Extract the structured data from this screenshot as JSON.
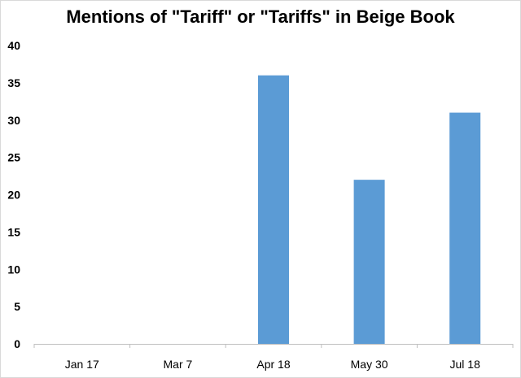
{
  "chart_data": {
    "type": "bar",
    "title": "Mentions of \"Tariff\" or \"Tariffs\" in Beige Book",
    "xlabel": "",
    "ylabel": "",
    "categories": [
      "Jan 17",
      "Mar 7",
      "Apr 18",
      "May 30",
      "Jul 18"
    ],
    "values": [
      0,
      0,
      36,
      22,
      31
    ],
    "ylim": [
      0,
      40
    ],
    "yticks": [
      0,
      5,
      10,
      15,
      20,
      25,
      30,
      35,
      40
    ],
    "grid": false,
    "legend": "none",
    "bar_color": "#5b9bd5",
    "axis_color": "#bfbfbf"
  }
}
